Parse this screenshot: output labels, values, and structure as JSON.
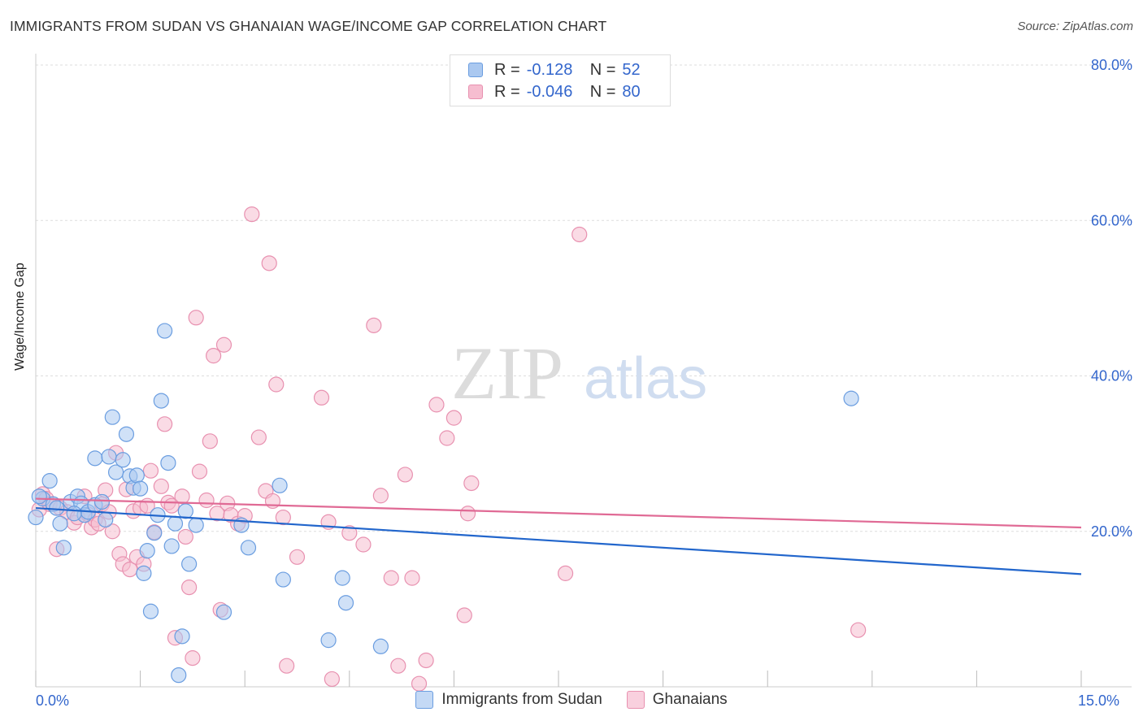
{
  "title": "IMMIGRANTS FROM SUDAN VS GHANAIAN WAGE/INCOME GAP CORRELATION CHART",
  "source": "Source: ZipAtlas.com",
  "watermark": {
    "zip": "ZIP",
    "atlas": "atlas"
  },
  "legend": {
    "r_label": "R =",
    "n_label": "N =",
    "items": [
      {
        "r": "-0.128",
        "n": "52"
      },
      {
        "r": "-0.046",
        "n": "80"
      }
    ]
  },
  "colors": {
    "blue_fill": "#aac8f0",
    "blue_stroke": "#6a9de0",
    "blue_line": "#2266cc",
    "pink_fill": "#f6bdd0",
    "pink_stroke": "#e891b0",
    "pink_line": "#e06a95",
    "axis_label": "#3366cc",
    "grid": "#dddddd"
  },
  "chart_data": {
    "type": "scatter",
    "title": "IMMIGRANTS FROM SUDAN VS GHANAIAN WAGE/INCOME GAP CORRELATION CHART",
    "xlabel": "",
    "ylabel": "Wage/Income Gap",
    "xlim": [
      0,
      15
    ],
    "ylim": [
      0,
      80
    ],
    "x_tick_labels": [
      "0.0%",
      "15.0%"
    ],
    "y_ticks": [
      20,
      40,
      60,
      80
    ],
    "y_tick_labels": [
      "20.0%",
      "40.0%",
      "60.0%",
      "80.0%"
    ],
    "grid": true,
    "legend_position": "top-center",
    "series": [
      {
        "name": "Immigrants from Sudan",
        "color": "blue",
        "trend": [
          [
            0,
            23.0
          ],
          [
            15,
            14.5
          ]
        ],
        "points": [
          [
            0.0,
            21.8
          ],
          [
            0.1,
            24.2
          ],
          [
            0.2,
            26.5
          ],
          [
            0.25,
            23.5
          ],
          [
            0.35,
            21.0
          ],
          [
            0.4,
            17.9
          ],
          [
            0.5,
            23.8
          ],
          [
            0.6,
            24.5
          ],
          [
            0.65,
            23.6
          ],
          [
            0.7,
            22.1
          ],
          [
            0.75,
            22.5
          ],
          [
            0.85,
            29.4
          ],
          [
            0.85,
            23.4
          ],
          [
            0.95,
            23.8
          ],
          [
            1.0,
            21.5
          ],
          [
            1.05,
            29.6
          ],
          [
            1.1,
            34.7
          ],
          [
            1.15,
            27.6
          ],
          [
            1.25,
            29.2
          ],
          [
            1.3,
            32.5
          ],
          [
            1.35,
            27.1
          ],
          [
            1.4,
            25.6
          ],
          [
            1.45,
            27.2
          ],
          [
            1.5,
            25.5
          ],
          [
            1.55,
            14.6
          ],
          [
            1.6,
            17.5
          ],
          [
            1.65,
            9.7
          ],
          [
            1.7,
            19.8
          ],
          [
            1.75,
            22.1
          ],
          [
            1.8,
            36.8
          ],
          [
            1.85,
            45.8
          ],
          [
            1.9,
            28.8
          ],
          [
            1.95,
            18.1
          ],
          [
            2.0,
            21.0
          ],
          [
            2.05,
            1.5
          ],
          [
            2.1,
            6.5
          ],
          [
            2.15,
            22.6
          ],
          [
            2.2,
            15.8
          ],
          [
            2.3,
            20.8
          ],
          [
            2.7,
            9.6
          ],
          [
            2.95,
            20.8
          ],
          [
            3.05,
            17.9
          ],
          [
            3.5,
            25.9
          ],
          [
            3.55,
            13.8
          ],
          [
            4.2,
            6.0
          ],
          [
            4.4,
            14.0
          ],
          [
            4.45,
            10.8
          ],
          [
            4.95,
            5.2
          ],
          [
            11.7,
            37.1
          ],
          [
            0.05,
            24.5
          ],
          [
            0.3,
            23.0
          ],
          [
            0.55,
            22.3
          ]
        ]
      },
      {
        "name": "Ghanaians",
        "color": "pink",
        "trend": [
          [
            0,
            24.2
          ],
          [
            15,
            20.5
          ]
        ],
        "points": [
          [
            0.05,
            22.8
          ],
          [
            0.1,
            24.8
          ],
          [
            0.15,
            24.2
          ],
          [
            0.2,
            23.5
          ],
          [
            0.3,
            17.7
          ],
          [
            0.35,
            23.0
          ],
          [
            0.45,
            22.5
          ],
          [
            0.55,
            21.1
          ],
          [
            0.6,
            21.8
          ],
          [
            0.7,
            24.5
          ],
          [
            0.75,
            22.2
          ],
          [
            0.8,
            20.5
          ],
          [
            0.85,
            21.5
          ],
          [
            0.9,
            21.0
          ],
          [
            0.95,
            23.5
          ],
          [
            1.0,
            25.3
          ],
          [
            1.05,
            22.5
          ],
          [
            1.1,
            20.0
          ],
          [
            1.15,
            30.1
          ],
          [
            1.2,
            17.1
          ],
          [
            1.25,
            15.8
          ],
          [
            1.3,
            25.4
          ],
          [
            1.35,
            15.1
          ],
          [
            1.4,
            22.6
          ],
          [
            1.45,
            16.7
          ],
          [
            1.5,
            23.0
          ],
          [
            1.55,
            15.8
          ],
          [
            1.6,
            23.3
          ],
          [
            1.65,
            27.8
          ],
          [
            1.7,
            19.9
          ],
          [
            1.8,
            25.8
          ],
          [
            1.85,
            33.8
          ],
          [
            1.9,
            23.7
          ],
          [
            1.95,
            23.3
          ],
          [
            2.0,
            6.3
          ],
          [
            2.1,
            24.5
          ],
          [
            2.15,
            19.3
          ],
          [
            2.2,
            12.8
          ],
          [
            2.25,
            3.7
          ],
          [
            2.3,
            47.5
          ],
          [
            2.35,
            27.7
          ],
          [
            2.45,
            24.0
          ],
          [
            2.5,
            31.6
          ],
          [
            2.55,
            42.6
          ],
          [
            2.6,
            22.3
          ],
          [
            2.65,
            9.9
          ],
          [
            2.7,
            44.0
          ],
          [
            2.75,
            23.6
          ],
          [
            2.8,
            22.1
          ],
          [
            2.9,
            21.0
          ],
          [
            3.0,
            22.0
          ],
          [
            3.1,
            60.8
          ],
          [
            3.2,
            32.1
          ],
          [
            3.3,
            25.2
          ],
          [
            3.35,
            54.5
          ],
          [
            3.4,
            23.9
          ],
          [
            3.45,
            38.9
          ],
          [
            3.55,
            21.8
          ],
          [
            3.6,
            2.7
          ],
          [
            3.75,
            16.7
          ],
          [
            4.1,
            37.2
          ],
          [
            4.2,
            21.2
          ],
          [
            4.25,
            1.0
          ],
          [
            4.5,
            19.8
          ],
          [
            4.7,
            18.3
          ],
          [
            4.85,
            46.5
          ],
          [
            4.95,
            24.6
          ],
          [
            5.1,
            14.0
          ],
          [
            5.2,
            2.7
          ],
          [
            5.3,
            27.3
          ],
          [
            5.4,
            14.0
          ],
          [
            5.5,
            0.4
          ],
          [
            5.6,
            3.4
          ],
          [
            5.75,
            36.3
          ],
          [
            5.9,
            32.0
          ],
          [
            6.0,
            34.6
          ],
          [
            6.15,
            9.2
          ],
          [
            6.2,
            22.3
          ],
          [
            6.25,
            26.2
          ],
          [
            7.8,
            58.2
          ]
        ],
        "extra_points": [
          [
            7.6,
            14.6
          ],
          [
            11.8,
            7.3
          ]
        ]
      }
    ]
  },
  "bottom_legend": [
    "Immigrants from Sudan",
    "Ghanaians"
  ]
}
